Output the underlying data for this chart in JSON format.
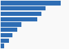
{
  "values": [
    3200,
    2400,
    2150,
    1950,
    1100,
    870,
    620,
    440,
    180
  ],
  "bar_color": "#2e6db4",
  "background_color": "#f9f9f9",
  "xlim": [
    0,
    3600
  ],
  "bar_height": 0.82,
  "grid_color": "#dddddd",
  "edge_color": "#ffffff"
}
